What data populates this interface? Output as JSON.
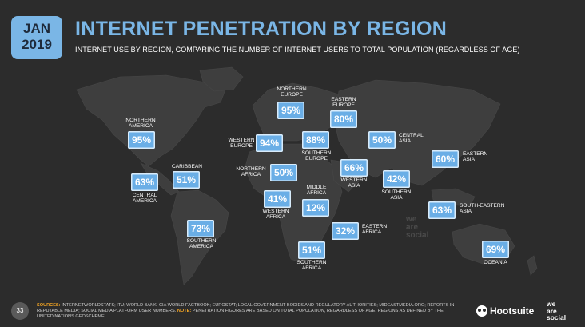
{
  "header": {
    "month": "JAN",
    "year": "2019",
    "title": "INTERNET PENETRATION BY REGION",
    "subtitle": "INTERNET USE BY REGION, COMPARING THE NUMBER OF INTERNET USERS TO TOTAL POPULATION (REGARDLESS OF AGE)"
  },
  "colors": {
    "background": "#2c2c2c",
    "land": "#3e3e3e",
    "accent": "#7ab6e6",
    "value_box": "#6aaee6",
    "source_key": "#f5a623"
  },
  "chart_data": {
    "type": "table",
    "title": "INTERNET PENETRATION BY REGION",
    "unit": "%",
    "regions": [
      {
        "name": "NORTHERN AMERICA",
        "value": 95,
        "label": "95%"
      },
      {
        "name": "CARIBBEAN",
        "value": 51,
        "label": "51%"
      },
      {
        "name": "CENTRAL AMERICA",
        "value": 63,
        "label": "63%"
      },
      {
        "name": "SOUTHERN AMERICA",
        "value": 73,
        "label": "73%"
      },
      {
        "name": "NORTHERN EUROPE",
        "value": 95,
        "label": "95%"
      },
      {
        "name": "WESTERN EUROPE",
        "value": 94,
        "label": "94%"
      },
      {
        "name": "SOUTHERN EUROPE",
        "value": 88,
        "label": "88%"
      },
      {
        "name": "EASTERN EUROPE",
        "value": 80,
        "label": "80%"
      },
      {
        "name": "NORTHERN AFRICA",
        "value": 50,
        "label": "50%"
      },
      {
        "name": "WESTERN AFRICA",
        "value": 41,
        "label": "41%"
      },
      {
        "name": "MIDDLE AFRICA",
        "value": 12,
        "label": "12%"
      },
      {
        "name": "EASTERN AFRICA",
        "value": 32,
        "label": "32%"
      },
      {
        "name": "SOUTHERN AFRICA",
        "value": 51,
        "label": "51%"
      },
      {
        "name": "WESTERN ASIA",
        "value": 66,
        "label": "66%"
      },
      {
        "name": "CENTRAL ASIA",
        "value": 50,
        "label": "50%"
      },
      {
        "name": "SOUTHERN ASIA",
        "value": 42,
        "label": "42%"
      },
      {
        "name": "EASTERN ASIA",
        "value": 60,
        "label": "60%"
      },
      {
        "name": "SOUTH-EASTERN ASIA",
        "value": 63,
        "label": "63%"
      },
      {
        "name": "OCEANIA",
        "value": 69,
        "label": "69%"
      }
    ]
  },
  "labels": {
    "northern_america": "NORTHERN\nAMERICA",
    "caribbean": "CARIBBEAN",
    "central_america": "CENTRAL\nAMERICA",
    "southern_america": "SOUTHERN\nAMERICA",
    "northern_europe": "NORTHERN\nEUROPE",
    "western_europe": "WESTERN\nEUROPE",
    "southern_europe": "SOUTHERN\nEUROPE",
    "eastern_europe": "EASTERN\nEUROPE",
    "northern_africa": "NORTHERN\nAFRICA",
    "western_africa": "WESTERN\nAFRICA",
    "middle_africa": "MIDDLE\nAFRICA",
    "eastern_africa": "EASTERN\nAFRICA",
    "southern_africa": "SOUTHERN\nAFRICA",
    "western_asia": "WESTERN\nASIA",
    "central_asia": "CENTRAL\nASIA",
    "southern_asia": "SOUTHERN\nASIA",
    "eastern_asia": "EASTERN\nASIA",
    "south_eastern_asia": "SOUTH-EASTERN\nASIA",
    "oceania": "OCEANIA"
  },
  "watermark": "we\nare\nsocial",
  "footer": {
    "page_number": "33",
    "sources_key": "SOURCES:",
    "sources_text": " INTERNETWORLDSTATS; ITU; WORLD BANK; CIA WORLD FACTBOOK; EUROSTAT; LOCAL GOVERNMENT BODIES AND REGULATORY AUTHORITIES; MIDEASTMEDIA.ORG; REPORTS IN REPUTABLE MEDIA; SOCIAL MEDIA PLATFORM USER NUMBERS. ",
    "note_key": "NOTE:",
    "note_text": " PENETRATION FIGURES ARE BASED ON TOTAL POPULATION, REGARDLESS OF AGE. REGIONS AS DEFINED BY THE UNITED NATIONS GEOSCHEME.",
    "hootsuite": "Hootsuite",
    "we_are_social": "we\nare\nsocial"
  }
}
